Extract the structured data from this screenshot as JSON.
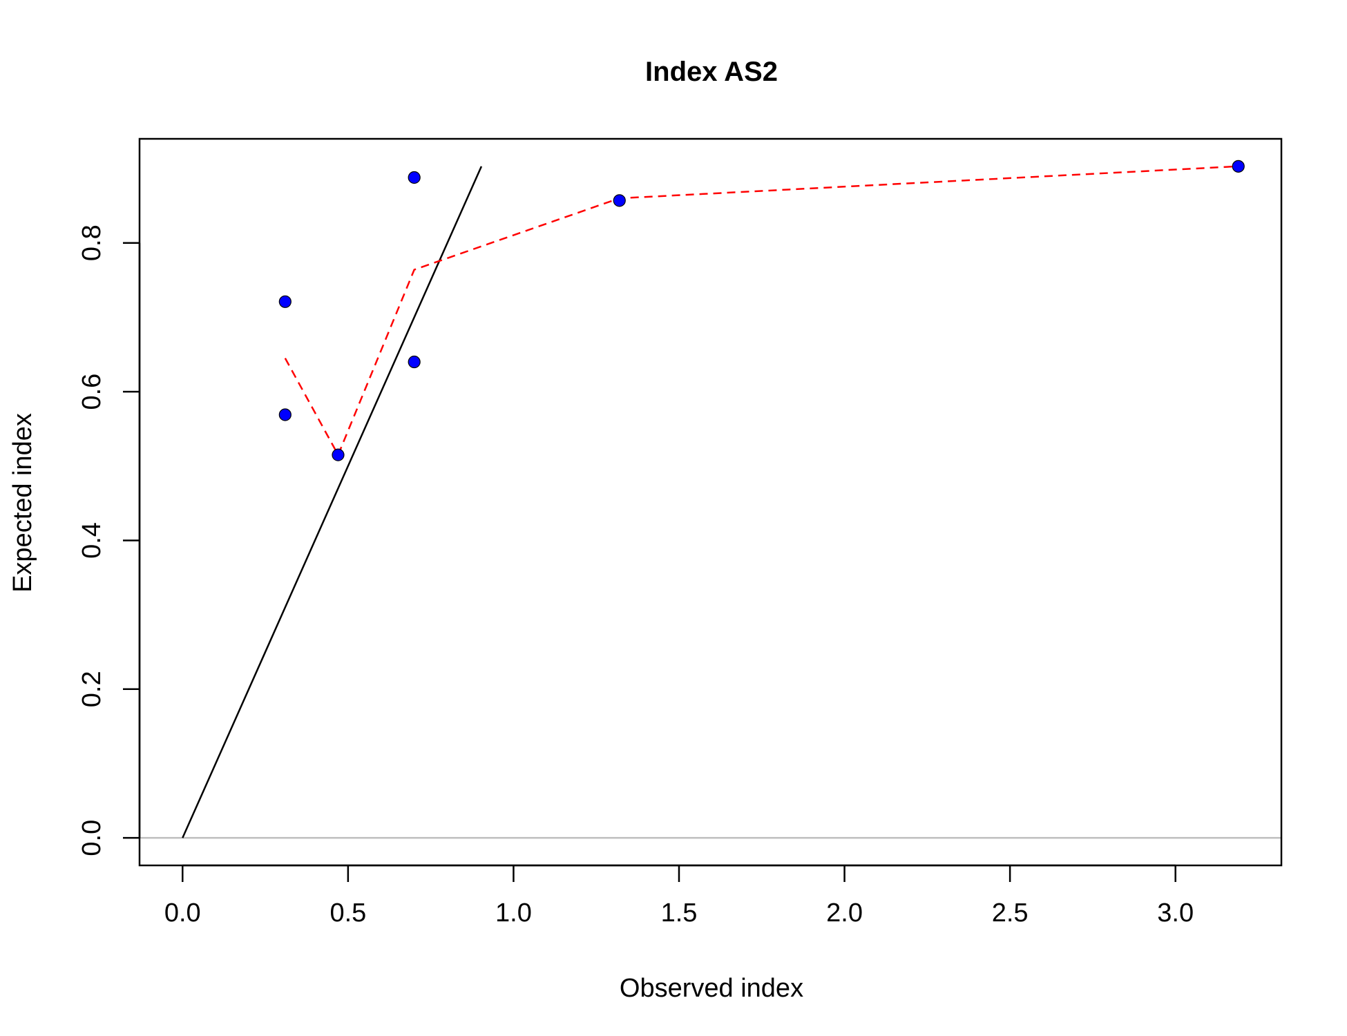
{
  "chart_data": {
    "type": "scatter",
    "title": "Index AS2",
    "xlabel": "Observed index",
    "ylabel": "Expected index",
    "xlim": [
      -0.13,
      3.32
    ],
    "ylim": [
      -0.037,
      0.94
    ],
    "x_ticks": [
      0.0,
      0.5,
      1.0,
      1.5,
      2.0,
      2.5,
      3.0
    ],
    "x_tick_labels": [
      "0.0",
      "0.5",
      "1.0",
      "1.5",
      "2.0",
      "2.5",
      "3.0"
    ],
    "y_ticks": [
      0.0,
      0.2,
      0.4,
      0.6,
      0.8
    ],
    "y_tick_labels": [
      "0.0",
      "0.2",
      "0.4",
      "0.6",
      "0.8"
    ],
    "grid": false,
    "legend": "none",
    "points": {
      "color": "#0000ff",
      "x": [
        0.31,
        0.31,
        0.47,
        0.7,
        0.7,
        1.32,
        3.19
      ],
      "y": [
        0.721,
        0.569,
        0.515,
        0.888,
        0.64,
        0.857,
        0.903
      ]
    },
    "identity_line": {
      "color": "#000000",
      "x": [
        0.0,
        0.903
      ],
      "y": [
        0.0,
        0.903
      ]
    },
    "smooth_line": {
      "color": "#ff0000",
      "style": "dashed",
      "x": [
        0.31,
        0.47,
        0.7,
        1.32,
        3.19
      ],
      "y": [
        0.645,
        0.515,
        0.764,
        0.86,
        0.903
      ]
    },
    "zero_line": {
      "color": "#bebebe",
      "y": 0.0
    }
  }
}
